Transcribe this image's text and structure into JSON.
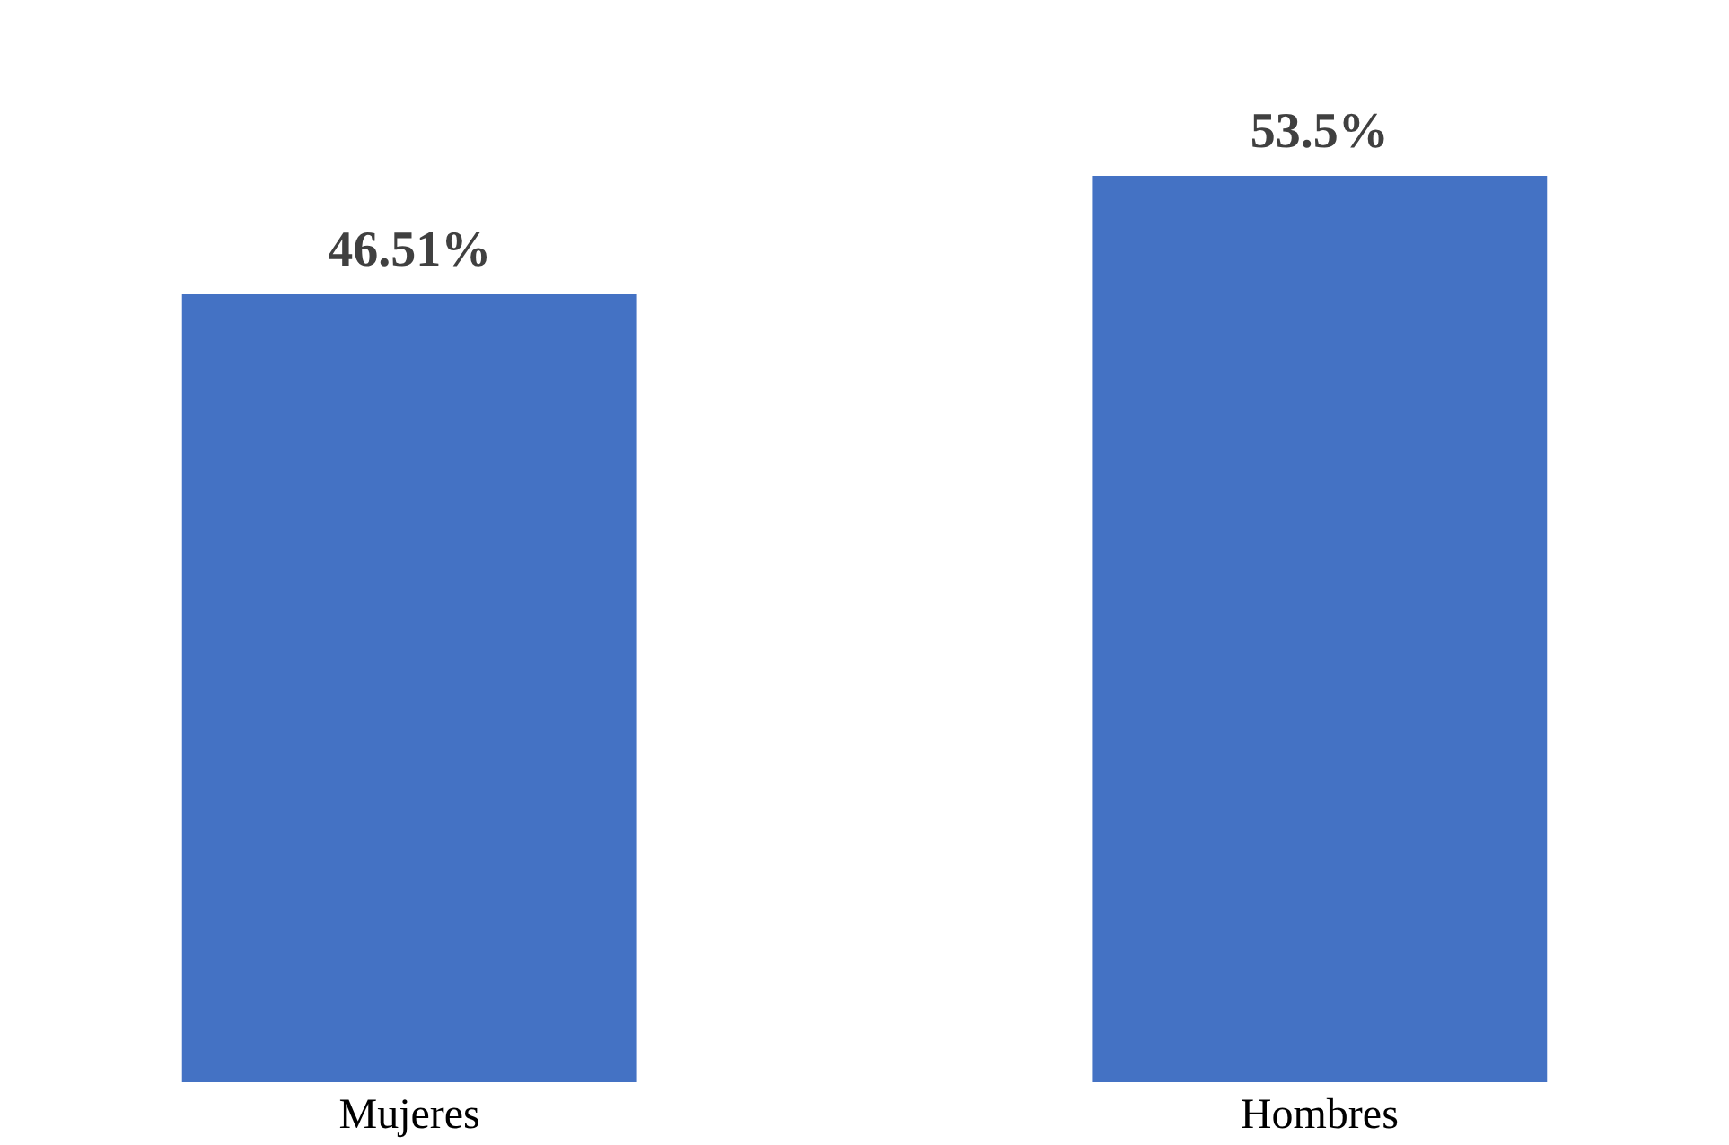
{
  "chart_data": {
    "type": "bar",
    "categories": [
      "Mujeres",
      "Hombres"
    ],
    "values": [
      46.51,
      53.5
    ],
    "value_labels": [
      "46.51%",
      "53.5%"
    ],
    "color": "#4472c4"
  }
}
